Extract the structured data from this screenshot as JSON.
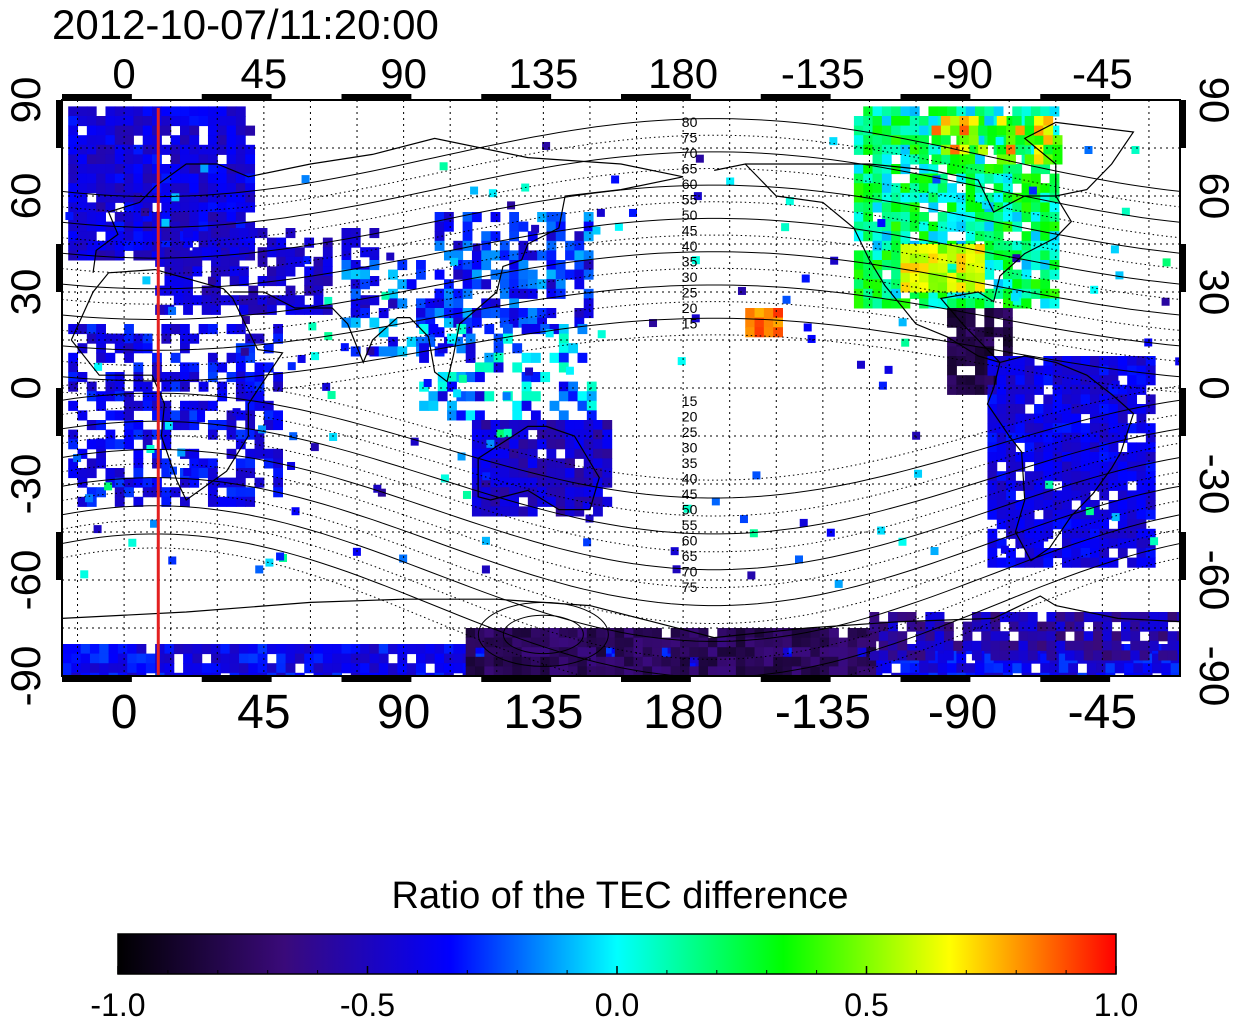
{
  "timestamp": "2012-10-07/11:20:00",
  "map": {
    "lon_labels": [
      "0",
      "45",
      "90",
      "135",
      "180",
      "-135",
      "-90",
      "-45"
    ],
    "lat_labels": [
      "90",
      "60",
      "30",
      "0",
      "-30",
      "-60",
      "-90"
    ],
    "marker_longitude": 11,
    "colors": {
      "marker": "#e32020",
      "gridlines": "#000000"
    },
    "contour_labels_north": [
      "80",
      "75",
      "70",
      "65",
      "60",
      "55",
      "50",
      "45",
      "40",
      "35",
      "30",
      "25",
      "20",
      "15"
    ],
    "contour_labels_south": [
      "15",
      "20",
      "25",
      "30",
      "35",
      "40",
      "45",
      "50",
      "55",
      "60",
      "65",
      "70",
      "75"
    ]
  },
  "colorbar": {
    "title": "Ratio of the TEC difference",
    "tick_labels": [
      "-1.0",
      "-0.5",
      "0.0",
      "0.5",
      "1.0"
    ],
    "range": [
      -1.0,
      1.0
    ],
    "colormap": [
      "#000000",
      "#3a0a7a",
      "#0000ff",
      "#00ffff",
      "#00ff00",
      "#ffff00",
      "#ff0000"
    ]
  }
}
